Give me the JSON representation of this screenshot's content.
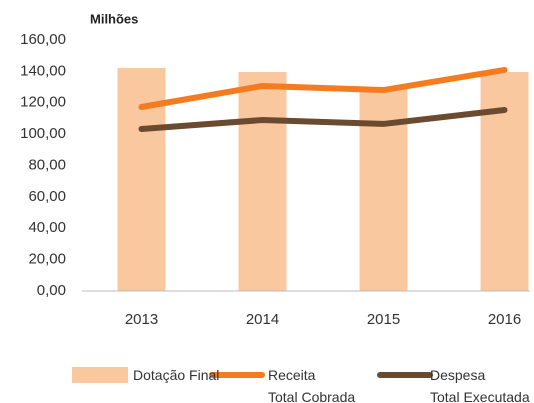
{
  "chart_data": {
    "type": "bar_line",
    "y_label": "Milhões",
    "categories": [
      "2013",
      "2014",
      "2015",
      "2016"
    ],
    "series": [
      {
        "name": "Dotação Final",
        "type": "bar",
        "color": "#fac89e",
        "values": [
          142.2,
          139.6,
          129.5,
          139.6
        ]
      },
      {
        "name": "Receita\nTotal Cobrada",
        "type": "line",
        "color": "#f47b20",
        "values": [
          117.3,
          130.7,
          128.1,
          140.9
        ]
      },
      {
        "name": "Despesa\nTotal Executada",
        "type": "line",
        "color": "#6b4b30",
        "values": [
          103.3,
          109.0,
          106.5,
          115.4
        ]
      }
    ],
    "ylim": [
      0,
      160
    ],
    "yticks": [
      {
        "value": 0,
        "label": "0,00"
      },
      {
        "value": 20,
        "label": "20,00"
      },
      {
        "value": 40,
        "label": "40,00"
      },
      {
        "value": 60,
        "label": "60,00"
      },
      {
        "value": 80,
        "label": "80,00"
      },
      {
        "value": 100,
        "label": "100,00"
      },
      {
        "value": 120,
        "label": "120,00"
      },
      {
        "value": 140,
        "label": "140,00"
      },
      {
        "value": 160,
        "label": "160,00"
      }
    ],
    "grid": false
  }
}
